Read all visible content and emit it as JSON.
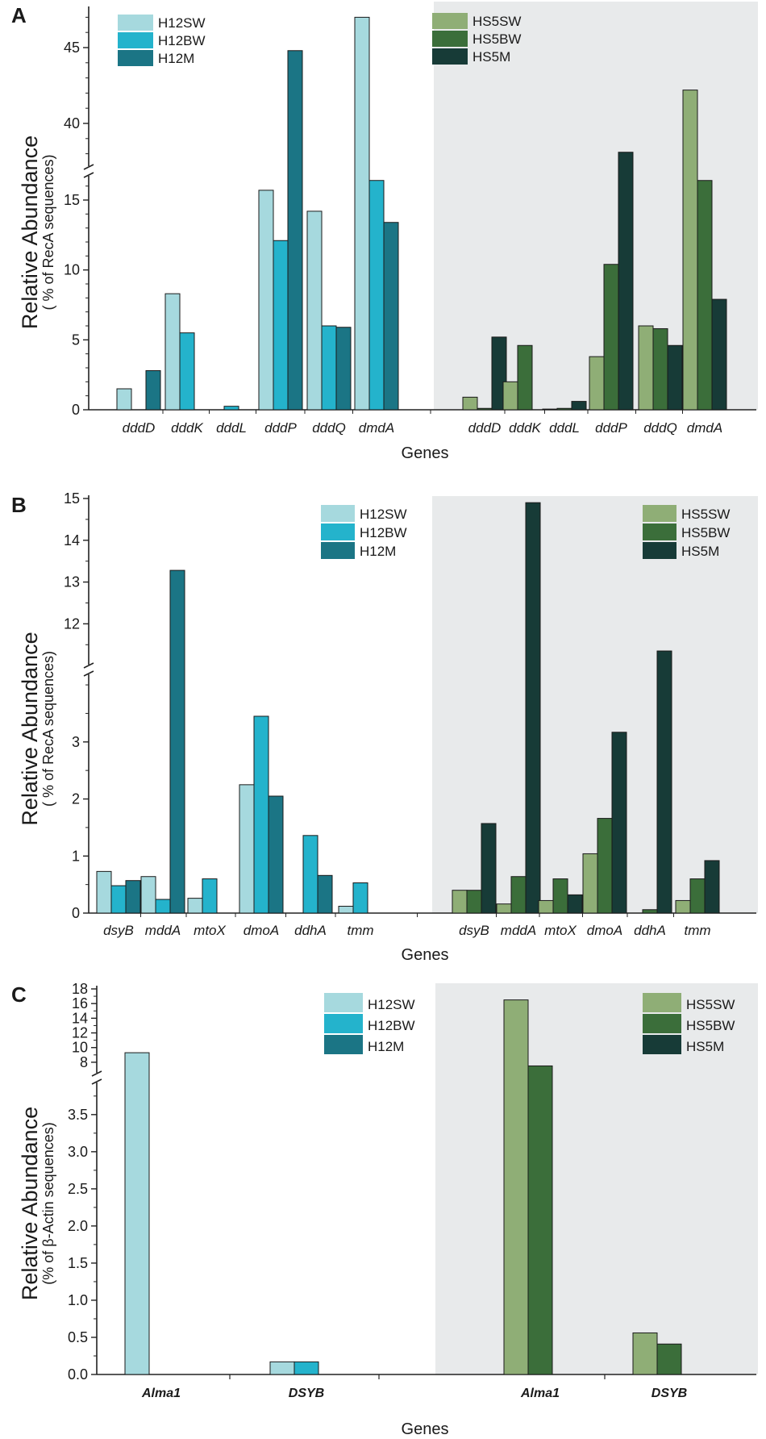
{
  "colors": {
    "H12SW": "#a6d9de",
    "H12BW": "#24b3cc",
    "H12M": "#1b7585",
    "HS5SW": "#8fae76",
    "HS5BW": "#3b6e3a",
    "HS5M": "#173b37",
    "shade": "#e8eaeb"
  },
  "chart_data": [
    {
      "panel": "A",
      "type": "bar",
      "xlabel": "Genes",
      "ylabel": "Relative Abundance",
      "ylabel_sub": "( % of RecA sequences)",
      "categories": [
        "dddD",
        "dddK",
        "dddL",
        "dddP",
        "dddQ",
        "dmdA"
      ],
      "axis_break": {
        "lower_max": 16.5,
        "upper_min": 37.5,
        "upper_max": 47.5
      },
      "yticks": [
        "0",
        "5",
        "10",
        "15",
        "40",
        "45"
      ],
      "groups": [
        {
          "shaded": false,
          "legend": [
            "H12SW",
            "H12BW",
            "H12M"
          ],
          "series": [
            {
              "name": "H12SW",
              "values": [
                1.5,
                8.3,
                0,
                15.7,
                14.2,
                47.0
              ]
            },
            {
              "name": "H12BW",
              "values": [
                0,
                5.5,
                0.25,
                12.1,
                6.0,
                16.4
              ]
            },
            {
              "name": "H12M",
              "values": [
                2.8,
                0,
                0,
                44.8,
                5.9,
                13.4
              ]
            }
          ]
        },
        {
          "shaded": true,
          "legend": [
            "HS5SW",
            "HS5BW",
            "HS5M"
          ],
          "series": [
            {
              "name": "HS5SW",
              "values": [
                0.9,
                2.0,
                0.05,
                3.8,
                6.0,
                42.2
              ]
            },
            {
              "name": "HS5BW",
              "values": [
                0.1,
                4.6,
                0.1,
                10.4,
                5.8,
                16.4
              ]
            },
            {
              "name": "HS5M",
              "values": [
                5.2,
                0,
                0.6,
                38.1,
                4.6,
                7.9
              ]
            }
          ]
        }
      ]
    },
    {
      "panel": "B",
      "type": "bar",
      "xlabel": "Genes",
      "ylabel": "Relative Abundance",
      "ylabel_sub": "( % of RecA sequences)",
      "categories": [
        "dsyB",
        "mddA",
        "mtoX",
        "dmoA",
        "ddhA",
        "tmm"
      ],
      "axis_break": {
        "lower_max": 4.1,
        "upper_min": 11.1,
        "upper_max": 15.0
      },
      "yticks": [
        "0",
        "1",
        "2",
        "3",
        "12",
        "13",
        "14",
        "15"
      ],
      "groups": [
        {
          "shaded": false,
          "legend": [
            "H12SW",
            "H12BW",
            "H12M"
          ],
          "series": [
            {
              "name": "H12SW",
              "values": [
                0.73,
                0.64,
                0.26,
                2.25,
                0,
                0.12
              ]
            },
            {
              "name": "H12BW",
              "values": [
                0.48,
                0.24,
                0.6,
                3.45,
                1.36,
                0.53
              ]
            },
            {
              "name": "H12M",
              "values": [
                0.57,
                13.28,
                0,
                2.05,
                0.66,
                0
              ]
            }
          ]
        },
        {
          "shaded": true,
          "legend": [
            "HS5SW",
            "HS5BW",
            "HS5M"
          ],
          "series": [
            {
              "name": "HS5SW",
              "values": [
                0.4,
                0.16,
                0.22,
                1.04,
                0,
                0.22
              ]
            },
            {
              "name": "HS5BW",
              "values": [
                0.4,
                0.64,
                0.6,
                1.66,
                0.06,
                0.6
              ]
            },
            {
              "name": "HS5M",
              "values": [
                1.57,
                14.9,
                0.32,
                3.17,
                11.35,
                0.92
              ]
            }
          ]
        }
      ]
    },
    {
      "panel": "C",
      "type": "bar",
      "xlabel": "Genes",
      "ylabel": "Relative Abundance",
      "ylabel_sub": "(% of β-Actin sequences)",
      "categories": [
        "Alma1",
        "DSYB"
      ],
      "axis_break": {
        "lower_max": 3.9,
        "upper_min": 7.0,
        "upper_max": 18.0
      },
      "yticks": [
        "0.0",
        "0.5",
        "1.0",
        "1.5",
        "2.0",
        "2.5",
        "3.0",
        "3.5",
        "8",
        "10",
        "12",
        "14",
        "16",
        "18"
      ],
      "groups": [
        {
          "shaded": false,
          "legend": [
            "H12SW",
            "H12BW",
            "H12M"
          ],
          "series": [
            {
              "name": "H12SW",
              "values": [
                9.3,
                0.17
              ]
            },
            {
              "name": "H12BW",
              "values": [
                0,
                0.17
              ]
            },
            {
              "name": "H12M",
              "values": [
                0,
                0
              ]
            }
          ]
        },
        {
          "shaded": true,
          "legend": [
            "HS5SW",
            "HS5BW",
            "HS5M"
          ],
          "series": [
            {
              "name": "HS5SW",
              "values": [
                16.5,
                0.56
              ]
            },
            {
              "name": "HS5BW",
              "values": [
                7.5,
                0.41
              ]
            },
            {
              "name": "HS5M",
              "values": [
                0,
                0
              ]
            }
          ]
        }
      ]
    }
  ]
}
